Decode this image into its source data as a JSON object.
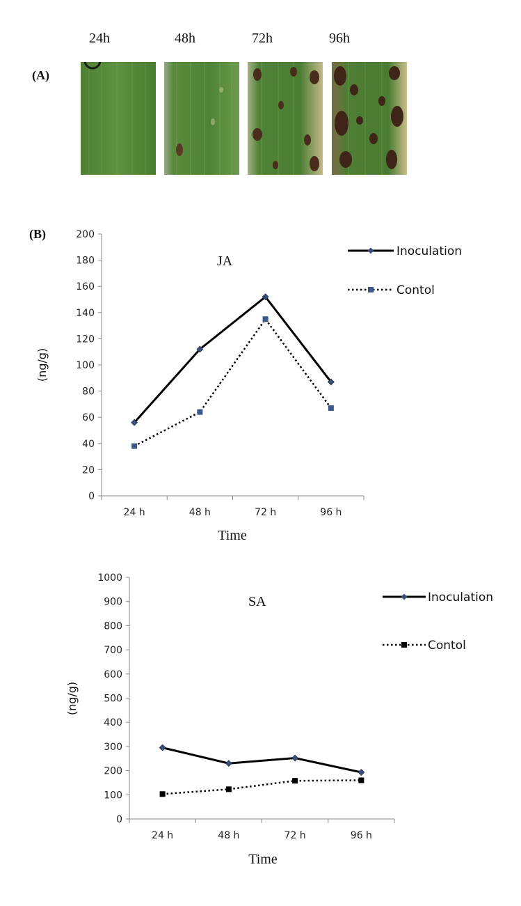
{
  "panel_a": {
    "label": "(A)",
    "time_labels": [
      "24h",
      "48h",
      "72h",
      "96h"
    ]
  },
  "panel_b": {
    "label": "(B)"
  },
  "chart_data": [
    {
      "type": "line",
      "title": "JA",
      "xlabel": "Time",
      "ylabel": "(ng/g)",
      "categories": [
        "24 h",
        "48 h",
        "72 h",
        "96 h"
      ],
      "ylim": [
        0,
        200
      ],
      "yticks": [
        0,
        20,
        40,
        60,
        80,
        100,
        120,
        140,
        160,
        180,
        200
      ],
      "legend_position": "top-right",
      "series": [
        {
          "name": "Inoculation",
          "values": [
            56,
            112,
            152,
            87
          ],
          "color": "#000000",
          "line_style": "solid",
          "marker": "diamond",
          "marker_color": "#3a4f7a"
        },
        {
          "name": "Contol",
          "values": [
            38,
            64,
            135,
            67
          ],
          "color": "#000000",
          "line_style": "dotted",
          "marker": "square",
          "marker_color": "#3b5a8a"
        }
      ]
    },
    {
      "type": "line",
      "title": "SA",
      "xlabel": "Time",
      "ylabel": "(ng/g)",
      "categories": [
        "24 h",
        "48 h",
        "72 h",
        "96 h"
      ],
      "ylim": [
        0,
        1000
      ],
      "yticks": [
        0,
        100,
        200,
        300,
        400,
        500,
        600,
        700,
        800,
        900,
        1000
      ],
      "legend_position": "top-right",
      "series": [
        {
          "name": "Inoculation",
          "values": [
            295,
            230,
            252,
            193
          ],
          "color": "#000000",
          "line_style": "solid",
          "marker": "diamond",
          "marker_color": "#3a4f7a"
        },
        {
          "name": "Contol",
          "values": [
            103,
            123,
            158,
            160
          ],
          "color": "#000000",
          "line_style": "dotted",
          "marker": "square",
          "marker_color": "#000000"
        }
      ]
    }
  ]
}
